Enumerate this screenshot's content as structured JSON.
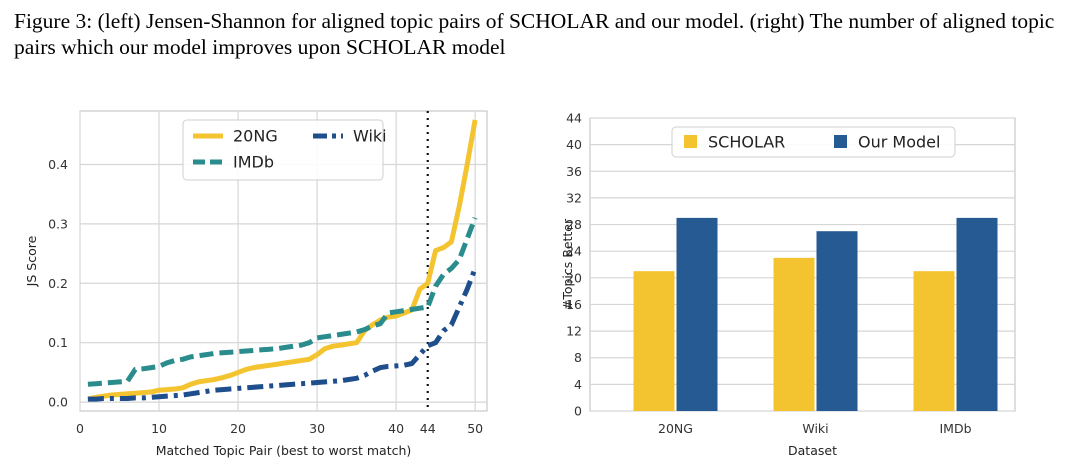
{
  "caption": "Figure 3: (left) Jensen-Shannon for aligned topic pairs of SCHOLAR and our model. (right) The number of aligned topic pairs which our model improves upon SCHOLAR model",
  "colors": {
    "20NG": "#f4c430",
    "IMDb": "#2a8c8c",
    "Wiki": "#1f4e8c",
    "SCHOLAR": "#f4c430",
    "Our Model": "#255a92",
    "grid": "#d6d6d6",
    "frame": "#bcbcbc"
  },
  "chart_data": [
    {
      "type": "line",
      "xlabel": "Matched Topic Pair (best to worst match)",
      "ylabel": "JS Score",
      "xlim": [
        0,
        51.5
      ],
      "ylim": [
        -0.015,
        0.49
      ],
      "xticks": [
        0,
        10,
        20,
        30,
        40,
        44,
        50
      ],
      "yticks": [
        0.0,
        0.1,
        0.2,
        0.3,
        0.4
      ],
      "ytick_labels": [
        "0.0",
        "0.1",
        "0.2",
        "0.3",
        "0.4"
      ],
      "grid": true,
      "legend": "top-center",
      "vline_x": 44,
      "x": [
        1,
        2,
        3,
        4,
        5,
        6,
        7,
        8,
        9,
        10,
        11,
        12,
        13,
        14,
        15,
        16,
        17,
        18,
        19,
        20,
        21,
        22,
        23,
        24,
        25,
        26,
        27,
        28,
        29,
        30,
        31,
        32,
        33,
        34,
        35,
        36,
        37,
        38,
        39,
        40,
        41,
        42,
        43,
        44,
        45,
        46,
        47,
        48,
        49,
        50
      ],
      "series": [
        {
          "name": "20NG",
          "style": "solid",
          "values": [
            0.005,
            0.008,
            0.01,
            0.012,
            0.013,
            0.014,
            0.015,
            0.016,
            0.017,
            0.02,
            0.021,
            0.022,
            0.024,
            0.03,
            0.034,
            0.036,
            0.038,
            0.041,
            0.045,
            0.05,
            0.055,
            0.058,
            0.06,
            0.062,
            0.064,
            0.066,
            0.068,
            0.07,
            0.072,
            0.08,
            0.09,
            0.094,
            0.096,
            0.098,
            0.1,
            0.12,
            0.13,
            0.138,
            0.143,
            0.145,
            0.15,
            0.155,
            0.19,
            0.2,
            0.255,
            0.26,
            0.27,
            0.33,
            0.4,
            0.475
          ]
        },
        {
          "name": "IMDb",
          "style": "dashed",
          "values": [
            0.03,
            0.031,
            0.032,
            0.033,
            0.034,
            0.035,
            0.055,
            0.056,
            0.058,
            0.06,
            0.066,
            0.07,
            0.072,
            0.076,
            0.078,
            0.08,
            0.082,
            0.083,
            0.084,
            0.085,
            0.086,
            0.087,
            0.088,
            0.089,
            0.09,
            0.092,
            0.094,
            0.096,
            0.1,
            0.108,
            0.11,
            0.112,
            0.114,
            0.116,
            0.118,
            0.122,
            0.128,
            0.132,
            0.15,
            0.152,
            0.154,
            0.156,
            0.158,
            0.16,
            0.195,
            0.215,
            0.225,
            0.24,
            0.275,
            0.31
          ]
        },
        {
          "name": "Wiki",
          "style": "dashdot",
          "values": [
            0.005,
            0.005,
            0.006,
            0.006,
            0.006,
            0.006,
            0.007,
            0.007,
            0.008,
            0.009,
            0.01,
            0.011,
            0.012,
            0.014,
            0.016,
            0.018,
            0.02,
            0.021,
            0.022,
            0.023,
            0.024,
            0.025,
            0.026,
            0.027,
            0.028,
            0.029,
            0.03,
            0.031,
            0.032,
            0.033,
            0.034,
            0.035,
            0.036,
            0.038,
            0.04,
            0.045,
            0.052,
            0.058,
            0.06,
            0.061,
            0.062,
            0.065,
            0.08,
            0.095,
            0.1,
            0.12,
            0.13,
            0.16,
            0.19,
            0.225
          ]
        }
      ]
    },
    {
      "type": "bar",
      "xlabel": "Dataset",
      "ylabel": "#Topics Better",
      "ylim": [
        0,
        44
      ],
      "yticks": [
        0,
        4,
        8,
        12,
        16,
        20,
        24,
        28,
        32,
        36,
        40,
        44
      ],
      "grid": true,
      "legend": "top-center",
      "categories": [
        "20NG",
        "Wiki",
        "IMDb"
      ],
      "series": [
        {
          "name": "SCHOLAR",
          "values": [
            21,
            23,
            21
          ]
        },
        {
          "name": "Our Model",
          "values": [
            29,
            27,
            29
          ]
        }
      ]
    }
  ]
}
